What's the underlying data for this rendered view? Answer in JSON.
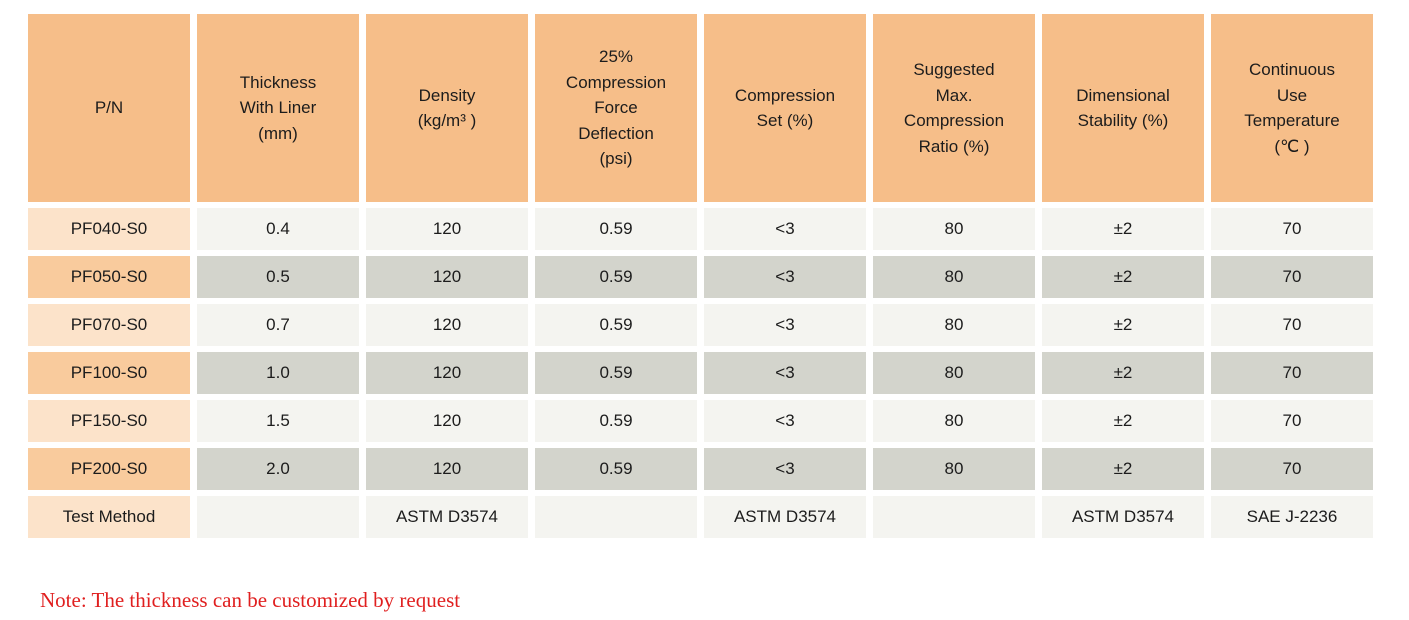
{
  "table": {
    "headers": [
      {
        "label": "P/N"
      },
      {
        "label": "Thickness\nWith Liner\n(mm)"
      },
      {
        "label": "Density\n(kg/m³ )"
      },
      {
        "label": "25%\nCompression\nForce\nDeflection\n(psi)"
      },
      {
        "label": "Compression\nSet (%)"
      },
      {
        "label": "Suggested\nMax.\nCompression\nRatio (%)"
      },
      {
        "label": "Dimensional\nStability (%)"
      },
      {
        "label": "Continuous\nUse\nTemperature\n(℃ )"
      }
    ],
    "rows": [
      {
        "pn": "PF040-S0",
        "values": [
          "0.4",
          "120",
          "0.59",
          "<3",
          "80",
          "±2",
          "70"
        ]
      },
      {
        "pn": "PF050-S0",
        "values": [
          "0.5",
          "120",
          "0.59",
          "<3",
          "80",
          "±2",
          "70"
        ]
      },
      {
        "pn": "PF070-S0",
        "values": [
          "0.7",
          "120",
          "0.59",
          "<3",
          "80",
          "±2",
          "70"
        ]
      },
      {
        "pn": "PF100-S0",
        "values": [
          "1.0",
          "120",
          "0.59",
          "<3",
          "80",
          "±2",
          "70"
        ]
      },
      {
        "pn": "PF150-S0",
        "values": [
          "1.5",
          "120",
          "0.59",
          "<3",
          "80",
          "±2",
          "70"
        ]
      },
      {
        "pn": "PF200-S0",
        "values": [
          "2.0",
          "120",
          "0.59",
          "<3",
          "80",
          "±2",
          "70"
        ]
      },
      {
        "pn": "Test Method",
        "values": [
          "",
          "ASTM D3574",
          "",
          "ASTM D3574",
          "",
          "ASTM D3574",
          "SAE J-2236"
        ]
      }
    ]
  },
  "note": "Note: The thickness can be customized by request",
  "colors": {
    "header_orange": "#f6be89",
    "pn_even_peach": "#f9cb9d",
    "pn_odd_peach": "#fce3ca",
    "cell_light_gray": "#f4f4f0",
    "cell_dark_gray": "#d3d4cc",
    "note_red": "#e01f1f"
  }
}
